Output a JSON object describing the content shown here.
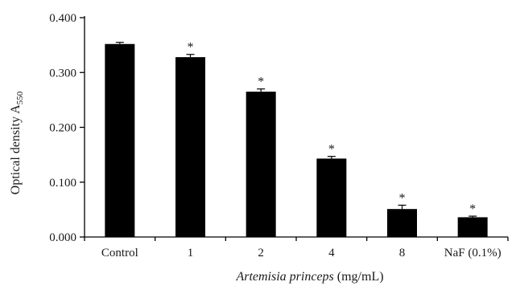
{
  "chart_data": {
    "type": "bar",
    "categories": [
      "Control",
      "1",
      "2",
      "4",
      "8",
      "NaF (0.1%)"
    ],
    "values": [
      0.352,
      0.328,
      0.265,
      0.143,
      0.051,
      0.036
    ],
    "errors": [
      0.003,
      0.005,
      0.005,
      0.004,
      0.007,
      0.002
    ],
    "significance": [
      "",
      "*",
      "*",
      "*",
      "*",
      "*"
    ],
    "ylim": [
      0,
      0.4
    ],
    "yticks": [
      0.0,
      0.1,
      0.2,
      0.3,
      0.4
    ],
    "ytick_labels": [
      "0.000",
      "0.100",
      "0.200",
      "0.300",
      "0.400"
    ],
    "ylabel": "Optical density A",
    "ylabel_subscript": "550",
    "xlabel_italic": "Artemisia princeps",
    "xlabel_rest": " (mg/mL)",
    "grid": false,
    "bar_color": "#000000"
  }
}
